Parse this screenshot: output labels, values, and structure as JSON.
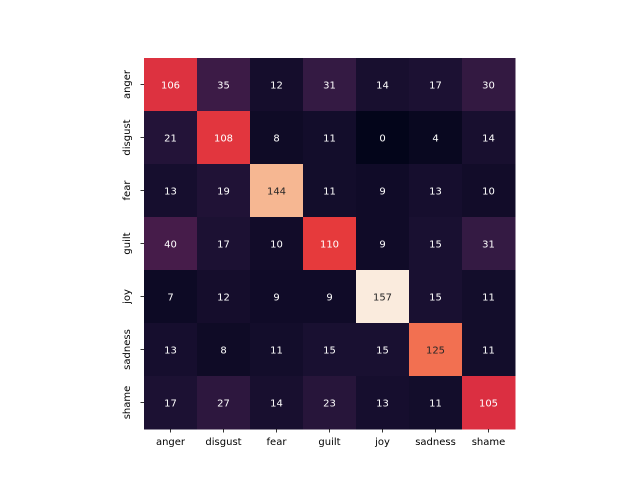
{
  "chart_data": {
    "type": "heatmap",
    "title": "",
    "xlabel": "",
    "ylabel": "",
    "x_labels": [
      "anger",
      "disgust",
      "fear",
      "guilt",
      "joy",
      "sadness",
      "shame"
    ],
    "y_labels": [
      "anger",
      "disgust",
      "fear",
      "guilt",
      "joy",
      "sadness",
      "shame"
    ],
    "values": [
      [
        106,
        35,
        12,
        31,
        14,
        17,
        30
      ],
      [
        21,
        108,
        8,
        11,
        0,
        4,
        14
      ],
      [
        13,
        19,
        144,
        11,
        9,
        13,
        10
      ],
      [
        40,
        17,
        10,
        110,
        9,
        15,
        31
      ],
      [
        7,
        12,
        9,
        9,
        157,
        15,
        11
      ],
      [
        13,
        8,
        11,
        15,
        15,
        125,
        11
      ],
      [
        17,
        27,
        14,
        23,
        13,
        11,
        105
      ]
    ],
    "value_range": [
      0,
      157
    ],
    "colormap": "rocket",
    "colorbar": false,
    "annotated": true,
    "grid": false
  }
}
